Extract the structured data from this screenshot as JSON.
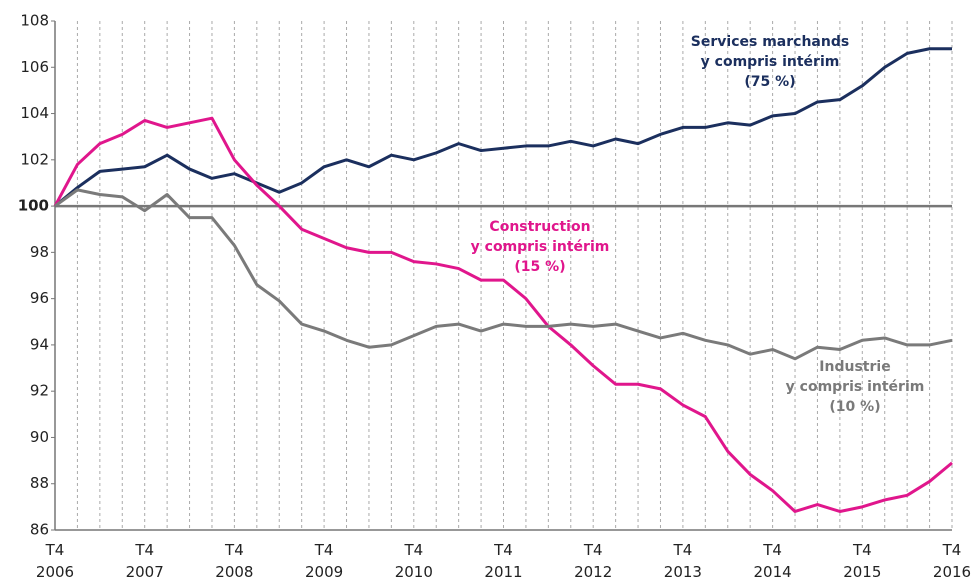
{
  "chart_data": {
    "type": "line",
    "categories": [
      "T4 2006",
      null,
      null,
      null,
      "T4 2007",
      null,
      null,
      null,
      "T4 2008",
      null,
      null,
      null,
      "T4 2009",
      null,
      null,
      null,
      "T4 2010",
      null,
      null,
      null,
      "T4 2011",
      null,
      null,
      null,
      "T4 2012",
      null,
      null,
      null,
      "T4 2013",
      null,
      null,
      null,
      "T4 2014",
      null,
      null,
      null,
      "T4 2015",
      null,
      null,
      null,
      "T4 2016"
    ],
    "series": [
      {
        "name": [
          "Services marchands",
          "y compris intérim",
          "(75 %)"
        ],
        "color": "#1b2f5e",
        "values": [
          100,
          100.8,
          101.5,
          101.6,
          101.7,
          102.2,
          101.6,
          101.2,
          101.4,
          101.0,
          100.6,
          101.0,
          101.7,
          102.0,
          101.7,
          102.2,
          102.0,
          102.3,
          102.7,
          102.4,
          102.5,
          102.6,
          102.6,
          102.8,
          102.6,
          102.9,
          102.7,
          103.1,
          103.4,
          103.4,
          103.6,
          103.5,
          103.9,
          104.0,
          104.5,
          104.6,
          105.2,
          106.0,
          106.6,
          106.8,
          106.8
        ]
      },
      {
        "name": [
          "Construction",
          "y compris intérim",
          "(15 %)"
        ],
        "color": "#e0168c",
        "values": [
          100,
          101.8,
          102.7,
          103.1,
          103.7,
          103.4,
          103.6,
          103.8,
          102.0,
          100.9,
          100.0,
          99.0,
          98.6,
          98.2,
          98.0,
          98.0,
          97.6,
          97.5,
          97.3,
          96.8,
          96.8,
          96.0,
          94.8,
          94.0,
          93.1,
          92.3,
          92.3,
          92.1,
          91.4,
          90.9,
          89.4,
          88.4,
          87.7,
          86.8,
          87.1,
          86.8,
          87.0,
          87.3,
          87.5,
          88.1,
          88.9
        ]
      },
      {
        "name": [
          "Industrie",
          "y compris intérim",
          "(10 %)"
        ],
        "color": "#7a7a7a",
        "values": [
          100,
          100.7,
          100.5,
          100.4,
          99.8,
          100.5,
          99.5,
          99.5,
          98.3,
          96.6,
          95.9,
          94.9,
          94.6,
          94.2,
          93.9,
          94.0,
          94.4,
          94.8,
          94.9,
          94.6,
          94.9,
          94.8,
          94.8,
          94.9,
          94.8,
          94.9,
          94.6,
          94.3,
          94.5,
          94.2,
          94.0,
          93.6,
          93.8,
          93.4,
          93.9,
          93.8,
          94.2,
          94.3,
          94.0,
          94.0,
          94.2
        ]
      }
    ],
    "ylim": [
      86,
      108
    ],
    "yticks": [
      86,
      88,
      90,
      92,
      94,
      96,
      98,
      100,
      102,
      104,
      106,
      108
    ],
    "baseline": 100,
    "grid": true
  }
}
